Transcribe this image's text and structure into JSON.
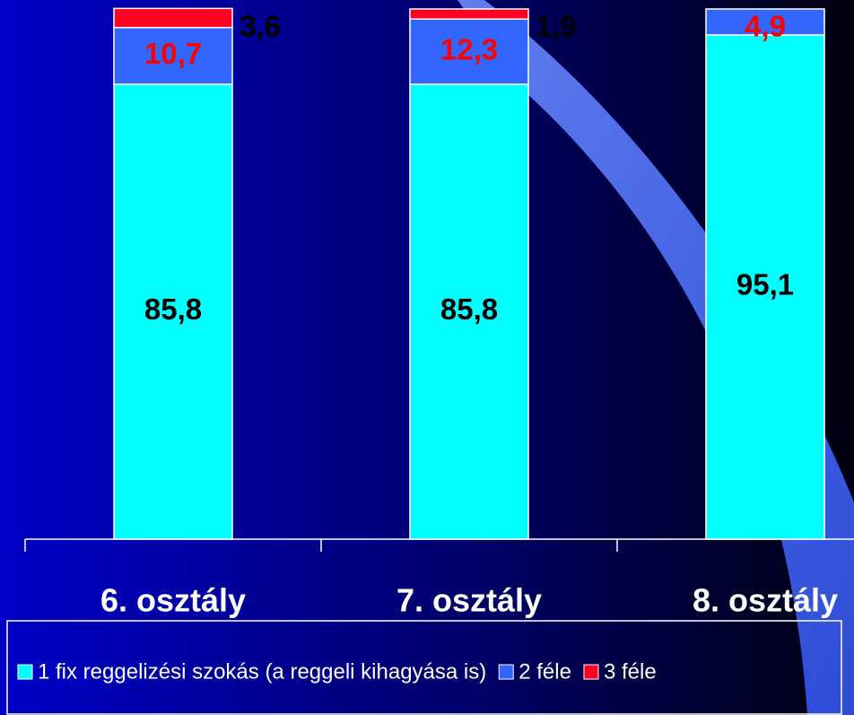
{
  "chart_data": {
    "type": "stacked_bar",
    "categories": [
      "6. osztály",
      "7. osztály",
      "8. osztály"
    ],
    "series": [
      {
        "name": "1 fix reggelizési szokás (a reggeli kihagyása is)",
        "color": "#00ffff",
        "label_color": "#000000",
        "values": [
          85.8,
          85.8,
          95.1
        ],
        "value_labels": [
          "85,8",
          "85,8",
          "95,1"
        ]
      },
      {
        "name": "2 féle",
        "color": "#3366ff",
        "label_color": "#ff0000",
        "values": [
          10.7,
          12.3,
          4.9
        ],
        "value_labels": [
          "10,7",
          "12,3",
          "4,9"
        ]
      },
      {
        "name": "3 féle",
        "color": "#ff0022",
        "label_color": "#000000",
        "values": [
          3.6,
          1.9,
          0
        ],
        "value_labels": [
          "3,6",
          "1,9",
          null
        ]
      }
    ],
    "ylim": [
      0,
      100
    ]
  }
}
